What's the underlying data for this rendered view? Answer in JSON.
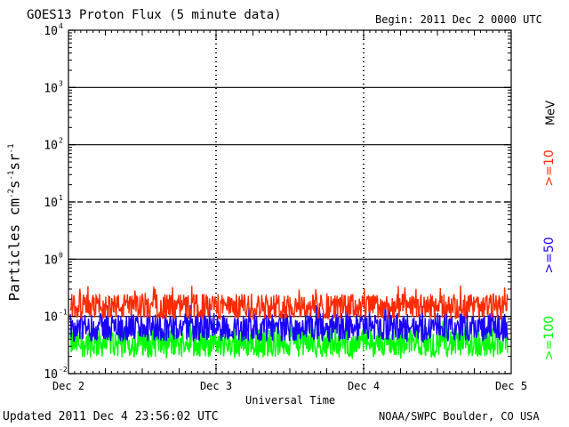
{
  "header": {
    "title": "GOES13 Proton Flux (5 minute data)",
    "begin": "Begin: 2011 Dec 2 0000 UTC"
  },
  "footer": {
    "updated": "Updated 2011 Dec  4 23:56:02 UTC",
    "credit": "NOAA/SWPC Boulder, CO USA"
  },
  "colors": {
    "series_10": "#ff2a00",
    "series_50": "#1a00ff",
    "series_100": "#00ff00",
    "axis": "#000000"
  },
  "chart_data": {
    "type": "line",
    "xlabel": "Universal Time",
    "ylabel": "Particles cm-2s-1sr-1",
    "yscale": "log",
    "ylim": [
      0.01,
      10000
    ],
    "xlim": [
      "2011 Dec 2 0000 UTC",
      "2011 Dec 5 0000 UTC"
    ],
    "x_ticks": [
      "Dec 2",
      "Dec 3",
      "Dec 4",
      "Dec 5"
    ],
    "y_ticks": [
      {
        "base": "10",
        "exp": "-2"
      },
      {
        "base": "10",
        "exp": "-1"
      },
      {
        "base": "10",
        "exp": "0"
      },
      {
        "base": "10",
        "exp": "1"
      },
      {
        "base": "10",
        "exp": "2"
      },
      {
        "base": "10",
        "exp": "3"
      },
      {
        "base": "10",
        "exp": "4"
      }
    ],
    "reference_lines": [
      {
        "value": 0.1,
        "style": "solid"
      },
      {
        "value": 1,
        "style": "solid"
      },
      {
        "value": 10,
        "style": "dashed"
      },
      {
        "value": 100,
        "style": "solid"
      },
      {
        "value": 1000,
        "style": "solid"
      }
    ],
    "unit_label": "MeV",
    "series": [
      {
        "name": ">=10",
        "color": "#ff2a00",
        "typical": 0.15,
        "low": 0.09,
        "high": 0.35
      },
      {
        "name": ">=50",
        "color": "#1a00ff",
        "typical": 0.065,
        "low": 0.035,
        "high": 0.16
      },
      {
        "name": ">=100",
        "color": "#00ff00",
        "typical": 0.035,
        "low": 0.018,
        "high": 0.09
      }
    ],
    "grid": false,
    "legend": "right, rotated vertical"
  }
}
